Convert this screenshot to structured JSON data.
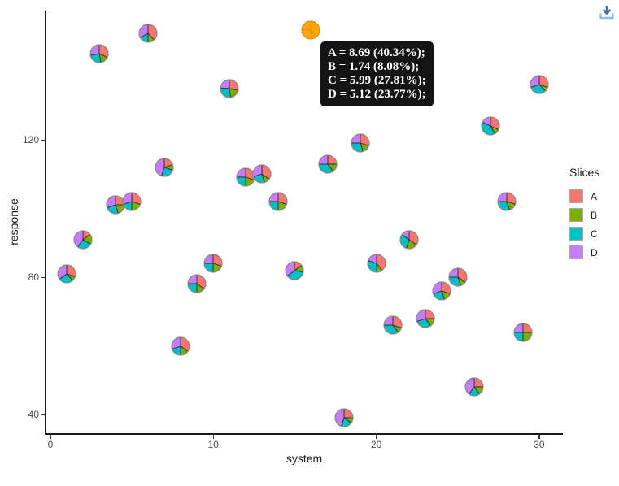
{
  "toolbar": {
    "download_label": "Download plot"
  },
  "chart_data": {
    "type": "scatter-pie",
    "title": "",
    "xlabel": "system",
    "ylabel": "response",
    "x_ticks": [
      0,
      10,
      20,
      30
    ],
    "y_ticks": [
      40,
      80,
      120
    ],
    "xlim": [
      0,
      31.5
    ],
    "ylim": [
      34,
      158
    ],
    "grid": false,
    "legend": {
      "title": "Slices",
      "position": "right",
      "entries": [
        {
          "label": "A",
          "color": "#F8766D"
        },
        {
          "label": "B",
          "color": "#7CAE00"
        },
        {
          "label": "C",
          "color": "#00BFC4"
        },
        {
          "label": "D",
          "color": "#C77CFF"
        }
      ]
    },
    "highlight": {
      "x": 16,
      "y": 152,
      "color": "#FFA40B",
      "values": {
        "A": 8.69,
        "B": 1.74,
        "C": 5.99,
        "D": 5.12
      },
      "percents": {
        "A": 40.34,
        "B": 8.08,
        "C": 27.81,
        "D": 23.77
      }
    },
    "tooltip": {
      "lines": [
        "A = 8.69 (40.34%);",
        "B = 1.74 (8.08%);",
        "C = 5.99 (27.81%);",
        "D = 5.12 (23.77%);"
      ],
      "bg": "#141414",
      "text_color": "#ffffff"
    },
    "points": [
      {
        "x": 1,
        "y": 81,
        "slices": [
          30,
          8,
          27,
          35
        ]
      },
      {
        "x": 2,
        "y": 91,
        "slices": [
          15,
          18,
          27,
          40
        ]
      },
      {
        "x": 3,
        "y": 145,
        "slices": [
          32,
          15,
          25,
          28
        ]
      },
      {
        "x": 4,
        "y": 101,
        "slices": [
          25,
          20,
          25,
          30
        ]
      },
      {
        "x": 5,
        "y": 102,
        "slices": [
          30,
          20,
          20,
          30
        ]
      },
      {
        "x": 6,
        "y": 151,
        "slices": [
          38,
          12,
          17,
          33
        ]
      },
      {
        "x": 7,
        "y": 112,
        "slices": [
          20,
          10,
          25,
          45
        ]
      },
      {
        "x": 8,
        "y": 60,
        "slices": [
          35,
          15,
          20,
          30
        ]
      },
      {
        "x": 9,
        "y": 78,
        "slices": [
          35,
          15,
          25,
          25
        ]
      },
      {
        "x": 10,
        "y": 84,
        "slices": [
          30,
          20,
          25,
          25
        ]
      },
      {
        "x": 11,
        "y": 135,
        "slices": [
          28,
          20,
          28,
          24
        ]
      },
      {
        "x": 12,
        "y": 109,
        "slices": [
          30,
          20,
          25,
          25
        ]
      },
      {
        "x": 13,
        "y": 110,
        "slices": [
          35,
          10,
          25,
          30
        ]
      },
      {
        "x": 14,
        "y": 102,
        "slices": [
          30,
          20,
          25,
          25
        ]
      },
      {
        "x": 15,
        "y": 82,
        "slices": [
          15,
          12,
          38,
          35
        ]
      },
      {
        "x": 16,
        "y": 152,
        "slices": [
          40.34,
          8.08,
          27.81,
          23.77
        ],
        "highlighted": true
      },
      {
        "x": 17,
        "y": 113,
        "slices": [
          25,
          15,
          35,
          25
        ]
      },
      {
        "x": 18,
        "y": 39,
        "slices": [
          25,
          10,
          20,
          45
        ]
      },
      {
        "x": 19,
        "y": 119,
        "slices": [
          30,
          15,
          30,
          25
        ]
      },
      {
        "x": 20,
        "y": 84,
        "slices": [
          40,
          10,
          30,
          20
        ]
      },
      {
        "x": 21,
        "y": 66,
        "slices": [
          30,
          10,
          35,
          25
        ]
      },
      {
        "x": 22,
        "y": 91,
        "slices": [
          35,
          20,
          30,
          15
        ]
      },
      {
        "x": 23,
        "y": 68,
        "slices": [
          25,
          15,
          30,
          30
        ]
      },
      {
        "x": 24,
        "y": 76,
        "slices": [
          30,
          15,
          25,
          30
        ]
      },
      {
        "x": 25,
        "y": 80,
        "slices": [
          35,
          10,
          30,
          25
        ]
      },
      {
        "x": 26,
        "y": 48,
        "slices": [
          25,
          15,
          20,
          40
        ]
      },
      {
        "x": 27,
        "y": 124,
        "slices": [
          32,
          10,
          40,
          18
        ]
      },
      {
        "x": 28,
        "y": 102,
        "slices": [
          30,
          15,
          30,
          25
        ]
      },
      {
        "x": 29,
        "y": 64,
        "slices": [
          25,
          25,
          25,
          25
        ]
      },
      {
        "x": 30,
        "y": 136,
        "slices": [
          30,
          8,
          32,
          30
        ]
      }
    ]
  }
}
